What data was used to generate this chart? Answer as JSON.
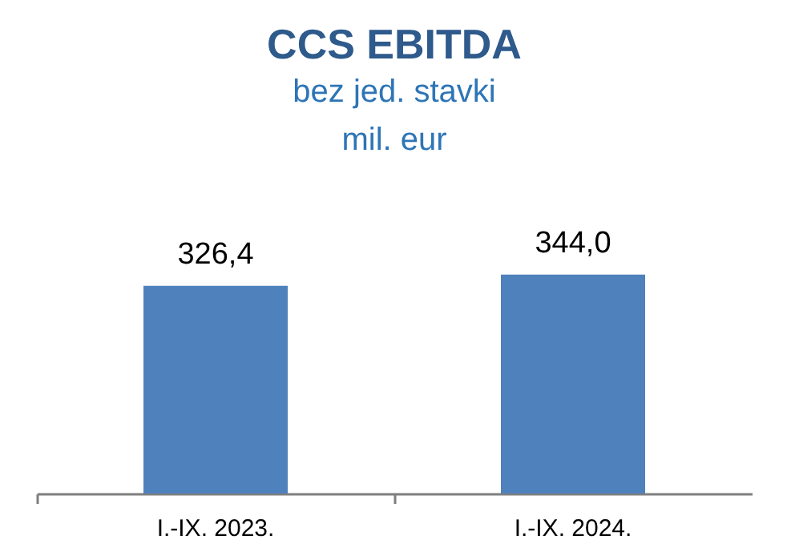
{
  "chart_data": {
    "type": "bar",
    "title": "CCS EBITDA",
    "subtitle": "bez jed. stavki\nmil. eur",
    "categories": [
      "I.-IX. 2023.",
      "I.-IX. 2024."
    ],
    "values": [
      326.4,
      344.0
    ],
    "value_labels": [
      "326,4",
      "344,0"
    ],
    "color": "#4f81bd",
    "tick_labels": "x",
    "grid": false
  }
}
